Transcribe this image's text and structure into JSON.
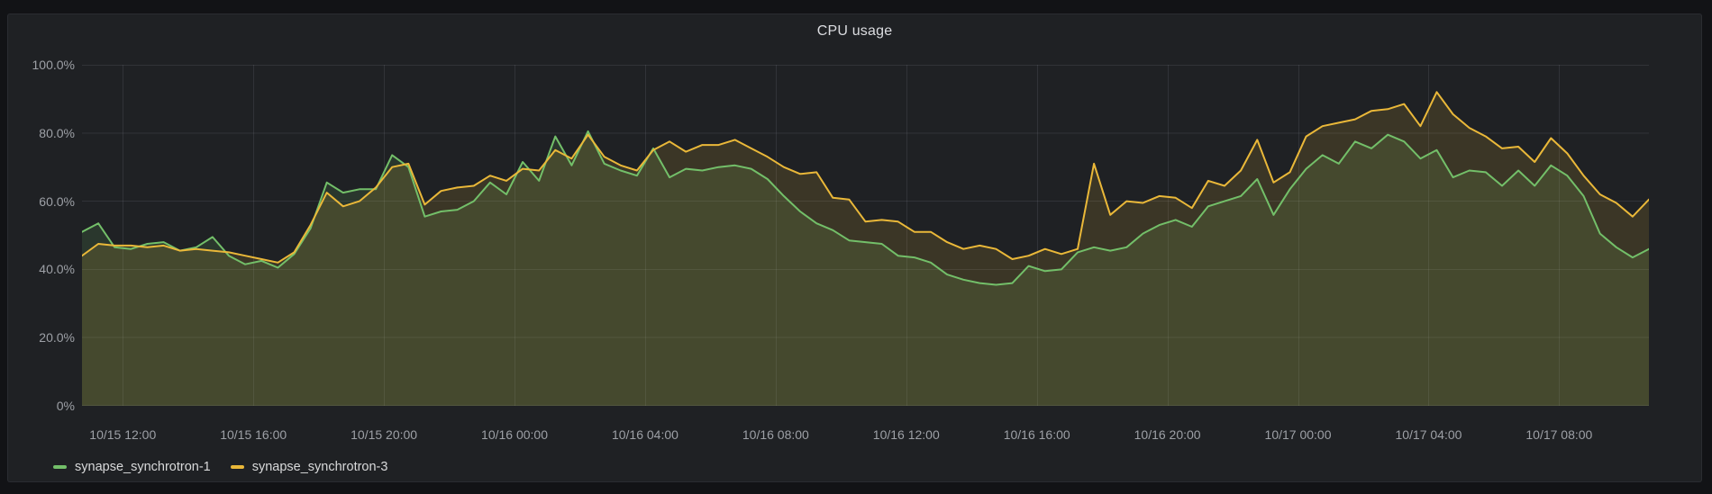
{
  "panel": {
    "title": "CPU usage"
  },
  "colors": {
    "outer_bg": "#121316",
    "panel_bg": "#1f2124",
    "grid": "rgba(204,204,220,0.11)",
    "tick_text": "#9da0a6",
    "title_text": "#dcdde1",
    "green": "#73bf69",
    "yellow": "#eab839"
  },
  "chart_data": {
    "type": "line",
    "title": "CPU usage",
    "xlabel": "",
    "ylabel": "",
    "grid": true,
    "legend_position": "bottom-left",
    "fill_opacity": 0.14,
    "line_width": 2,
    "ylim": [
      0,
      100
    ],
    "xlim_hours": [
      10.75,
      58.75
    ],
    "x_start_label": "10/15 10:45",
    "x_step_minutes": 30,
    "x_hours_offset_start": 10.75,
    "x_hours_step": 0.5,
    "y_ticks": [
      {
        "value": 0,
        "label": "0%"
      },
      {
        "value": 20,
        "label": "20.0%"
      },
      {
        "value": 40,
        "label": "40.0%"
      },
      {
        "value": 60,
        "label": "60.0%"
      },
      {
        "value": 80,
        "label": "80.0%"
      },
      {
        "value": 100,
        "label": "100.0%"
      }
    ],
    "x_ticks": [
      {
        "hours": 12,
        "label": "10/15 12:00"
      },
      {
        "hours": 16,
        "label": "10/15 16:00"
      },
      {
        "hours": 20,
        "label": "10/15 20:00"
      },
      {
        "hours": 24,
        "label": "10/16 00:00"
      },
      {
        "hours": 28,
        "label": "10/16 04:00"
      },
      {
        "hours": 32,
        "label": "10/16 08:00"
      },
      {
        "hours": 36,
        "label": "10/16 12:00"
      },
      {
        "hours": 40,
        "label": "10/16 16:00"
      },
      {
        "hours": 44,
        "label": "10/16 20:00"
      },
      {
        "hours": 48,
        "label": "10/17 00:00"
      },
      {
        "hours": 52,
        "label": "10/17 04:00"
      },
      {
        "hours": 56,
        "label": "10/17 08:00"
      }
    ],
    "series": [
      {
        "name": "synapse_synchrotron-1",
        "color": "#73bf69",
        "values": [
          51,
          53.5,
          46.5,
          46,
          47.5,
          48,
          45.5,
          46.5,
          49.5,
          44,
          41.5,
          42.5,
          40.5,
          44.5,
          52,
          65.5,
          62.5,
          63.5,
          63.5,
          73.5,
          70,
          55.5,
          57,
          57.5,
          60,
          65.5,
          62,
          71.5,
          66,
          79,
          70.5,
          80.5,
          71,
          69,
          67.5,
          75.5,
          67,
          69.5,
          69,
          70,
          70.5,
          69.5,
          66.5,
          61.5,
          57,
          53.5,
          51.5,
          48.5,
          48,
          47.5,
          44,
          43.5,
          42,
          38.5,
          37,
          36,
          35.5,
          36,
          41,
          39.5,
          40,
          45,
          46.5,
          45.5,
          46.5,
          50.5,
          53,
          54.5,
          52.5,
          58.5,
          60,
          61.5,
          66.5,
          56,
          63.5,
          69.5,
          73.5,
          71,
          77.5,
          75.5,
          79.5,
          77.5,
          72.5,
          75,
          67,
          69,
          68.5,
          64.5,
          69,
          64.5,
          70.5,
          67.5,
          61.5,
          50.5,
          46.5,
          43.5,
          46
        ]
      },
      {
        "name": "synapse_synchrotron-3",
        "color": "#eab839",
        "values": [
          44,
          47.5,
          47,
          47,
          46.5,
          47,
          45.5,
          46,
          45.5,
          45,
          44,
          43,
          42,
          45,
          53,
          62.5,
          58.5,
          60,
          64,
          70,
          71,
          59,
          63,
          64,
          64.5,
          67.5,
          66,
          69.5,
          69,
          75,
          72.5,
          79.5,
          73,
          70.5,
          69,
          75,
          77.5,
          74.5,
          76.5,
          76.5,
          78,
          75.5,
          73,
          70,
          68,
          68.5,
          61,
          60.5,
          54,
          54.5,
          54,
          51,
          51,
          48,
          46,
          47,
          46,
          43,
          44,
          46,
          44.5,
          46,
          71,
          56,
          60,
          59.5,
          61.5,
          61,
          58,
          66,
          64.5,
          69,
          78,
          65.5,
          68.5,
          79,
          82,
          83,
          84,
          86.5,
          87,
          88.5,
          82,
          92,
          85.5,
          81.5,
          79,
          75.5,
          76,
          71.5,
          78.5,
          74,
          67.5,
          62,
          59.5,
          55.5,
          60.5
        ]
      }
    ]
  }
}
